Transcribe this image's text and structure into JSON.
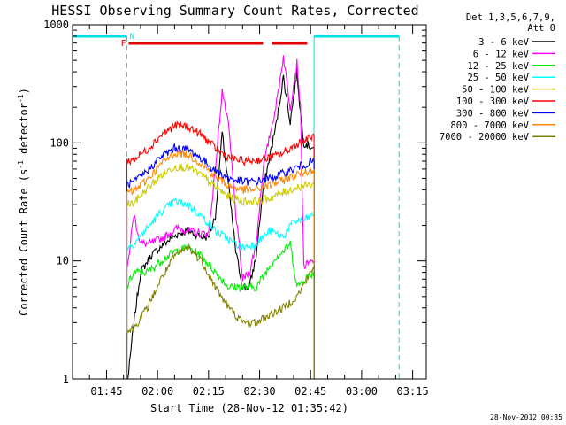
{
  "chart_data": {
    "type": "line",
    "title": "HESSI Observing Summary Count Rates, Corrected",
    "xlabel": "Start Time (28-Nov-12 01:35:42)",
    "ylabel_main": "Corrected Count Rate (s",
    "ylabel_sup1": "-1",
    "ylabel_mid": " detector",
    "ylabel_sup2": "-1",
    "ylabel_end": ")",
    "y_scale": "log",
    "ylim": [
      1,
      1000
    ],
    "xlim_minutes": [
      0,
      104
    ],
    "x_ticks": [
      "01:45",
      "02:00",
      "02:15",
      "02:30",
      "02:45",
      "03:00",
      "03:15"
    ],
    "y_ticks": [
      "1",
      "10",
      "100",
      "1000"
    ],
    "legend_header": [
      "Det 1,3,5,6,7,9,",
      "Att 0"
    ],
    "legend_position": "right",
    "flags": {
      "f_label": "F",
      "n_label": "N"
    },
    "timestamp": "28-Nov-2012 00:35",
    "series": [
      {
        "name": "3 - 6 keV",
        "color": "#000000",
        "points": [
          [
            16,
            0.8
          ],
          [
            18,
            3
          ],
          [
            20,
            8
          ],
          [
            23,
            11
          ],
          [
            27,
            14
          ],
          [
            31,
            17
          ],
          [
            34,
            18
          ],
          [
            38,
            16
          ],
          [
            40,
            16
          ],
          [
            42,
            24
          ],
          [
            44,
            120
          ],
          [
            46,
            40
          ],
          [
            48,
            12
          ],
          [
            50,
            6
          ],
          [
            52,
            6
          ],
          [
            54,
            11
          ],
          [
            56,
            40
          ],
          [
            60,
            150
          ],
          [
            62,
            360
          ],
          [
            64,
            150
          ],
          [
            66,
            400
          ],
          [
            67,
            180
          ],
          [
            68,
            100
          ],
          [
            71,
            90
          ]
        ]
      },
      {
        "name": "6 - 12 keV",
        "color": "#ff00ff",
        "points": [
          [
            16,
            8
          ],
          [
            18,
            25
          ],
          [
            20,
            14
          ],
          [
            23,
            14
          ],
          [
            27,
            16
          ],
          [
            31,
            19
          ],
          [
            34,
            18
          ],
          [
            38,
            17
          ],
          [
            40,
            17
          ],
          [
            42,
            60
          ],
          [
            44,
            280
          ],
          [
            46,
            130
          ],
          [
            48,
            25
          ],
          [
            50,
            7
          ],
          [
            52,
            8
          ],
          [
            54,
            14
          ],
          [
            56,
            60
          ],
          [
            60,
            220
          ],
          [
            62,
            540
          ],
          [
            64,
            200
          ],
          [
            66,
            480
          ],
          [
            67,
            200
          ],
          [
            68,
            9
          ],
          [
            71,
            10
          ]
        ]
      },
      {
        "name": "12 - 25 keV",
        "color": "#00ee00",
        "points": [
          [
            16,
            6
          ],
          [
            18,
            8
          ],
          [
            22,
            8
          ],
          [
            26,
            10
          ],
          [
            30,
            12
          ],
          [
            34,
            13
          ],
          [
            38,
            11
          ],
          [
            42,
            8
          ],
          [
            46,
            6
          ],
          [
            50,
            6
          ],
          [
            54,
            6
          ],
          [
            58,
            9
          ],
          [
            60,
            11
          ],
          [
            62,
            12
          ],
          [
            64,
            14
          ],
          [
            66,
            6
          ],
          [
            68,
            7
          ],
          [
            71,
            8
          ]
        ]
      },
      {
        "name": "25 - 50 keV",
        "color": "#00ffff",
        "points": [
          [
            16,
            13
          ],
          [
            18,
            14
          ],
          [
            22,
            19
          ],
          [
            26,
            26
          ],
          [
            30,
            32
          ],
          [
            34,
            30
          ],
          [
            38,
            24
          ],
          [
            42,
            18
          ],
          [
            46,
            15
          ],
          [
            50,
            13
          ],
          [
            54,
            14
          ],
          [
            58,
            18
          ],
          [
            62,
            16
          ],
          [
            64,
            20
          ],
          [
            66,
            22
          ],
          [
            68,
            22
          ],
          [
            71,
            25
          ]
        ]
      },
      {
        "name": "50 - 100 keV",
        "color": "#cccc00",
        "points": [
          [
            16,
            30
          ],
          [
            18,
            31
          ],
          [
            22,
            41
          ],
          [
            26,
            53
          ],
          [
            30,
            63
          ],
          [
            34,
            62
          ],
          [
            38,
            53
          ],
          [
            42,
            42
          ],
          [
            46,
            35
          ],
          [
            50,
            32
          ],
          [
            54,
            32
          ],
          [
            58,
            34
          ],
          [
            62,
            38
          ],
          [
            66,
            42
          ],
          [
            71,
            45
          ]
        ]
      },
      {
        "name": "100 - 300 keV",
        "color": "#ff0000",
        "points": [
          [
            16,
            70
          ],
          [
            18,
            72
          ],
          [
            22,
            88
          ],
          [
            26,
            116
          ],
          [
            30,
            140
          ],
          [
            34,
            138
          ],
          [
            38,
            116
          ],
          [
            42,
            90
          ],
          [
            46,
            75
          ],
          [
            50,
            70
          ],
          [
            54,
            71
          ],
          [
            58,
            75
          ],
          [
            62,
            82
          ],
          [
            66,
            98
          ],
          [
            71,
            115
          ]
        ]
      },
      {
        "name": "300 - 800 keV",
        "color": "#0000ff",
        "points": [
          [
            16,
            45
          ],
          [
            18,
            46
          ],
          [
            22,
            58
          ],
          [
            26,
            76
          ],
          [
            30,
            90
          ],
          [
            34,
            88
          ],
          [
            38,
            73
          ],
          [
            42,
            58
          ],
          [
            46,
            50
          ],
          [
            50,
            47
          ],
          [
            54,
            47
          ],
          [
            58,
            50
          ],
          [
            62,
            55
          ],
          [
            66,
            62
          ],
          [
            71,
            70
          ]
        ]
      },
      {
        "name": "800 - 7000 keV",
        "color": "#ff8800",
        "points": [
          [
            16,
            38
          ],
          [
            18,
            39
          ],
          [
            22,
            49
          ],
          [
            26,
            66
          ],
          [
            30,
            82
          ],
          [
            34,
            80
          ],
          [
            38,
            66
          ],
          [
            42,
            52
          ],
          [
            46,
            43
          ],
          [
            50,
            40
          ],
          [
            54,
            40
          ],
          [
            58,
            44
          ],
          [
            62,
            48
          ],
          [
            66,
            54
          ],
          [
            71,
            60
          ]
        ]
      },
      {
        "name": "7000 - 20000 keV",
        "color": "#808000",
        "points": [
          [
            16,
            2.5
          ],
          [
            18,
            2.7
          ],
          [
            22,
            4
          ],
          [
            26,
            7
          ],
          [
            30,
            11
          ],
          [
            34,
            13
          ],
          [
            38,
            10
          ],
          [
            42,
            6
          ],
          [
            46,
            4
          ],
          [
            50,
            3
          ],
          [
            54,
            3
          ],
          [
            58,
            3.5
          ],
          [
            62,
            4
          ],
          [
            66,
            5
          ],
          [
            69,
            7
          ],
          [
            71,
            9
          ]
        ]
      }
    ]
  }
}
